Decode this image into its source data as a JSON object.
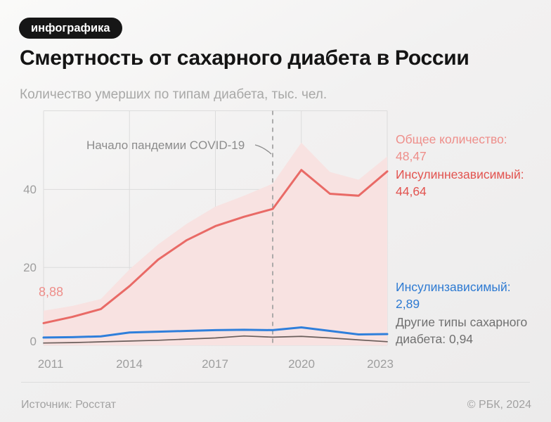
{
  "page": {
    "badge": "инфографика",
    "title": "Смертность от сахарного диабета в России",
    "subtitle": "Количество умерших по типам диабета, тыс. чел.",
    "footer_source": "Источник: Росстат",
    "footer_copyright": "© РБК, 2024"
  },
  "annotations": {
    "covid_note": "Начало пандемии COVID-19",
    "start_value": "8,88",
    "legend": [
      {
        "lines": [
          "Общее количество:",
          "48,47"
        ],
        "color": "#ee8e8a"
      },
      {
        "lines": [
          "Инсулиннезависимый:",
          "44,64"
        ],
        "color": "#e2534f"
      },
      {
        "lines": [
          "Инсулинзависимый:",
          "2,89"
        ],
        "color": "#2d7ad2"
      },
      {
        "lines": [
          "Другие типы сахарного",
          "диабета: 0,94"
        ],
        "color": "#707070"
      }
    ]
  },
  "chart_data": {
    "type": "line",
    "title": "Количество умерших по типам диабета, тыс. чел.",
    "x": [
      2011,
      2012,
      2013,
      2014,
      2015,
      2016,
      2017,
      2018,
      2019,
      2020,
      2021,
      2022,
      2023
    ],
    "xlim": [
      2011,
      2023
    ],
    "ylim": [
      0,
      60.2
    ],
    "x_ticks": [
      "2011",
      "2014",
      "2017",
      "2020",
      "2023"
    ],
    "x_tick_values": [
      2011,
      2014,
      2017,
      2020,
      2023
    ],
    "y_ticks": [
      "0",
      "20",
      "40"
    ],
    "y_tick_values": [
      0,
      20,
      40
    ],
    "grid": true,
    "covid_marker_x": 2019,
    "series": [
      {
        "name": "Общее количество",
        "style": "area",
        "color": "#f8e2e1",
        "values": [
          8.88,
          10.1,
          11.9,
          19.5,
          25.9,
          31.2,
          35.6,
          38.4,
          41.5,
          52.0,
          44.5,
          42.5,
          48.47
        ],
        "last_value_label": "48,47",
        "first_value_label": "8,88"
      },
      {
        "name": "Инсулиннезависимый",
        "style": "line",
        "color": "#e96a66",
        "width": 3,
        "values": [
          5.7,
          7.3,
          9.3,
          15.2,
          22.0,
          27.0,
          30.6,
          33.0,
          35.0,
          45.0,
          38.9,
          38.4,
          44.64
        ],
        "last_value_label": "44,64"
      },
      {
        "name": "Инсулинзависимый",
        "style": "line",
        "color": "#2f7fdb",
        "width": 3,
        "values": [
          2.0,
          2.1,
          2.3,
          3.3,
          3.5,
          3.7,
          3.9,
          4.0,
          3.9,
          4.6,
          3.7,
          2.8,
          2.89
        ],
        "last_value_label": "2,89"
      },
      {
        "name": "Другие типы сахарного диабета",
        "style": "line",
        "color": "#6a5e5b",
        "width": 1.7,
        "values": [
          0.6,
          0.7,
          0.9,
          1.1,
          1.3,
          1.6,
          1.9,
          2.4,
          2.1,
          2.3,
          1.9,
          1.4,
          0.94
        ],
        "last_value_label": "0,94"
      }
    ],
    "gridline_color": "#dcdcdc",
    "covid_line_color": "#a3a3a3"
  }
}
